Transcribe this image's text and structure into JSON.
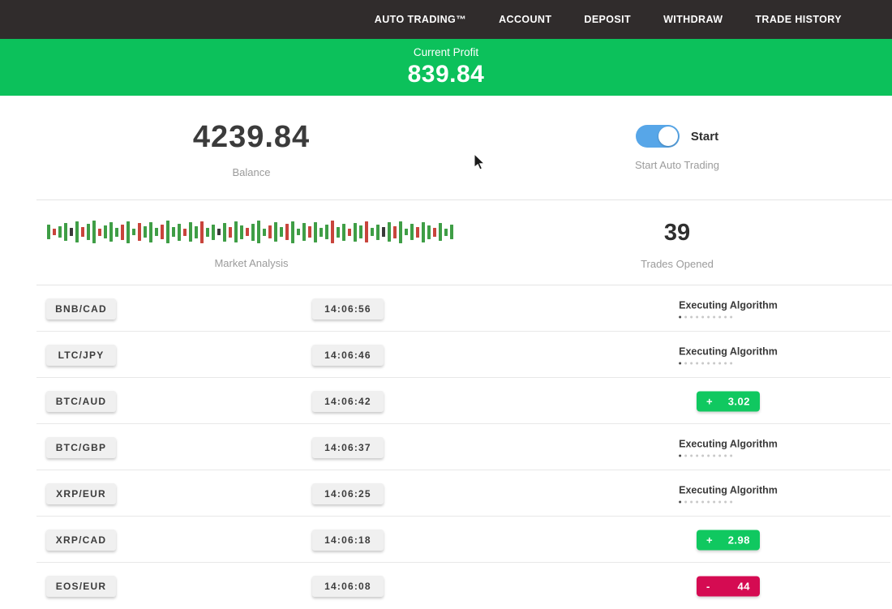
{
  "nav": {
    "items": [
      "AUTO TRADING™",
      "ACCOUNT",
      "DEPOSIT",
      "WITHDRAW",
      "TRADE HISTORY"
    ]
  },
  "profit_banner": {
    "label": "Current Profit",
    "value": "839.84"
  },
  "account": {
    "balance": "4239.84",
    "balance_label": "Balance",
    "toggle_label": "Start",
    "toggle_sublabel": "Start Auto Trading",
    "toggle_state": "on"
  },
  "market": {
    "label": "Market Analysis",
    "trades_opened": "39",
    "trades_label": "Trades Opened",
    "bars": [
      [
        18,
        "g"
      ],
      [
        8,
        "r"
      ],
      [
        14,
        "g"
      ],
      [
        22,
        "g"
      ],
      [
        10,
        "d"
      ],
      [
        26,
        "g"
      ],
      [
        12,
        "r"
      ],
      [
        20,
        "g"
      ],
      [
        28,
        "g"
      ],
      [
        9,
        "r"
      ],
      [
        16,
        "g"
      ],
      [
        24,
        "g"
      ],
      [
        11,
        "g"
      ],
      [
        19,
        "r"
      ],
      [
        27,
        "g"
      ],
      [
        8,
        "g"
      ],
      [
        22,
        "r"
      ],
      [
        14,
        "g"
      ],
      [
        25,
        "g"
      ],
      [
        10,
        "g"
      ],
      [
        18,
        "r"
      ],
      [
        28,
        "g"
      ],
      [
        12,
        "g"
      ],
      [
        21,
        "g"
      ],
      [
        9,
        "r"
      ],
      [
        24,
        "g"
      ],
      [
        15,
        "g"
      ],
      [
        27,
        "r"
      ],
      [
        11,
        "g"
      ],
      [
        19,
        "g"
      ],
      [
        8,
        "d"
      ],
      [
        23,
        "g"
      ],
      [
        13,
        "r"
      ],
      [
        26,
        "g"
      ],
      [
        17,
        "g"
      ],
      [
        10,
        "r"
      ],
      [
        21,
        "g"
      ],
      [
        28,
        "g"
      ],
      [
        9,
        "g"
      ],
      [
        16,
        "r"
      ],
      [
        24,
        "g"
      ],
      [
        12,
        "g"
      ],
      [
        20,
        "r"
      ],
      [
        27,
        "g"
      ],
      [
        8,
        "g"
      ],
      [
        22,
        "g"
      ],
      [
        14,
        "r"
      ],
      [
        25,
        "g"
      ],
      [
        11,
        "g"
      ],
      [
        18,
        "g"
      ],
      [
        28,
        "r"
      ],
      [
        13,
        "g"
      ],
      [
        21,
        "g"
      ],
      [
        9,
        "r"
      ],
      [
        23,
        "g"
      ],
      [
        16,
        "g"
      ],
      [
        26,
        "r"
      ],
      [
        10,
        "g"
      ],
      [
        19,
        "g"
      ],
      [
        12,
        "d"
      ],
      [
        24,
        "g"
      ],
      [
        15,
        "r"
      ],
      [
        27,
        "g"
      ],
      [
        8,
        "g"
      ],
      [
        20,
        "g"
      ],
      [
        13,
        "r"
      ],
      [
        25,
        "g"
      ],
      [
        17,
        "g"
      ],
      [
        11,
        "r"
      ],
      [
        22,
        "g"
      ],
      [
        9,
        "g"
      ],
      [
        18,
        "g"
      ]
    ]
  },
  "labels": {
    "executing": "Executing Algorithm"
  },
  "trades": [
    {
      "pair": "BNB/CAD",
      "time": "14:06:56",
      "status": "executing"
    },
    {
      "pair": "LTC/JPY",
      "time": "14:06:46",
      "status": "executing"
    },
    {
      "pair": "BTC/AUD",
      "time": "14:06:42",
      "status": "profit",
      "sign": "+",
      "value": "3.02"
    },
    {
      "pair": "BTC/GBP",
      "time": "14:06:37",
      "status": "executing"
    },
    {
      "pair": "XRP/EUR",
      "time": "14:06:25",
      "status": "executing"
    },
    {
      "pair": "XRP/CAD",
      "time": "14:06:18",
      "status": "profit",
      "sign": "+",
      "value": "2.98"
    },
    {
      "pair": "EOS/EUR",
      "time": "14:06:08",
      "status": "loss",
      "sign": "-",
      "value": "44"
    }
  ],
  "colors": {
    "banner_green": "#0cc15b",
    "profit_green": "#10c860",
    "loss_red": "#d50b52",
    "toggle_blue": "#57a6e8",
    "nav_dark": "#302c2c"
  }
}
